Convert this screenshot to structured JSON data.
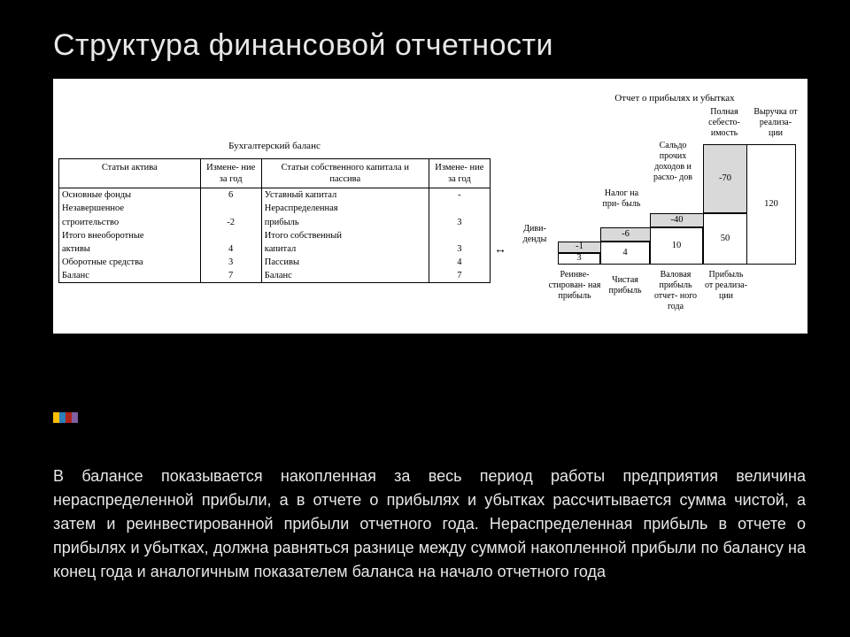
{
  "title": "Структура финансовой отчетности",
  "balance": {
    "caption": "Бухгалтерский баланс",
    "columns": [
      "Статьи актива",
      "Измене-\nние за\nгод",
      "Статьи собственного капитала и пассива",
      "Измене-\nние за\nгод"
    ],
    "rows": [
      [
        "Основные фонды",
        "6",
        "Уставный капитал",
        "-"
      ],
      [
        "Незавершенное",
        "",
        "Нераспределенная",
        ""
      ],
      [
        "строительство",
        "-2",
        "прибыль",
        "3"
      ],
      [
        "Итого внеоборотные",
        "",
        "Итого собственный",
        ""
      ],
      [
        "активы",
        "4",
        "капитал",
        "3"
      ],
      [
        "Оборотные средства",
        "3",
        "Пассивы",
        "4"
      ],
      [
        "Баланс",
        "7",
        "Баланс",
        "7"
      ]
    ]
  },
  "arrow": "↔",
  "pl": {
    "caption": "Отчет о прибылях и убытках",
    "col_labels": {
      "dividends": "Диви-\nденды",
      "other": "Сальдо\nпрочих\nдоходов\nи расхо-\nдов",
      "tax": "Налог\nна при-\nбыль",
      "cost": "Полная\nсебесто-\nимость",
      "revenue": "Выручка\nот\nреализа-\nции"
    },
    "bottom_labels": {
      "reinv": "Реинве-\nстирован-\nная\nприбыль",
      "net": "Чистая\nприбыль",
      "gross_year": "Валовая\nприбыль\nотчет-\nного года",
      "sales_profit": "Прибыль\nот\nреализа-\nции"
    },
    "values": {
      "cost": "-70",
      "revenue": "120",
      "tax": "-40",
      "sales_profit": "50",
      "div": "-6",
      "gross": "10",
      "reinv_neg": "-1",
      "net": "4",
      "reinv": "3"
    },
    "colors": {
      "shade": "#d9d9d9",
      "bg": "#ffffff",
      "border": "#000000"
    }
  },
  "accent_colors": [
    "#ffc000",
    "#2c7fb8",
    "#b02318",
    "#7f5fa0"
  ],
  "body": "В балансе показывается накопленная за весь период работы предприятия величина нераспределенной прибыли, а в отчете о прибылях и убытках рассчитывается сумма чистой, а затем и реинвестированной прибыли отчетного года. Нераспределенная прибыль в отчете о прибылях и убытках, должна равняться разнице между суммой накопленной прибыли по балансу на конец года и аналогичным показателем баланса на начало отчетного года"
}
